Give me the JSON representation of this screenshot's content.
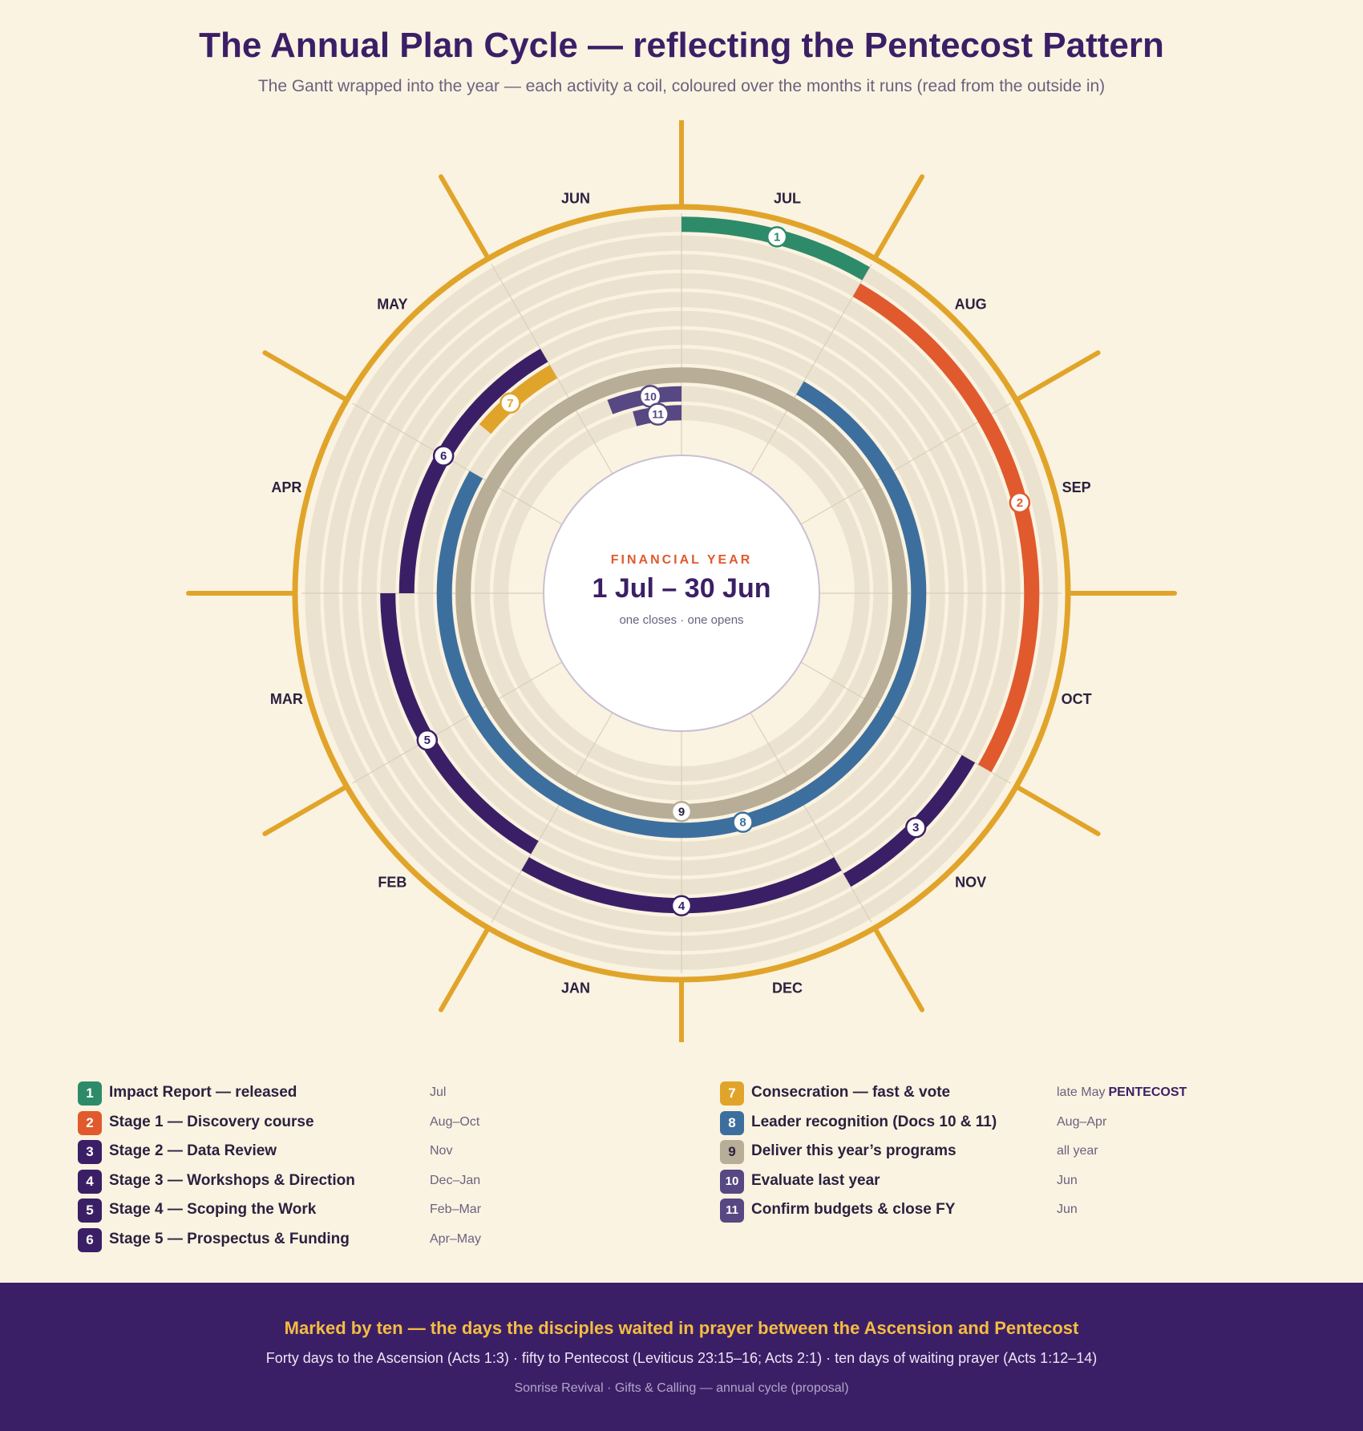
{
  "header": {
    "title": "The Annual Plan Cycle — reflecting the Pentecost Pattern",
    "subtitle": "The Gantt wrapped into the year — each activity a coil, coloured over the months it runs (read from the outside in)"
  },
  "months": [
    "JUL",
    "AUG",
    "SEP",
    "OCT",
    "NOV",
    "DEC",
    "JAN",
    "FEB",
    "MAR",
    "APR",
    "MAY",
    "JUN"
  ],
  "center": {
    "eyebrow": "FINANCIAL YEAR",
    "range": "1 Jul – 30 Jun",
    "caption": "one closes · one opens"
  },
  "activities": [
    {
      "n": "1",
      "label": "Impact Report — released",
      "when": "Jul",
      "color": "#2e8b6a",
      "ring": 1,
      "start": 0,
      "end": 1,
      "marker": 0.5
    },
    {
      "n": "2",
      "label": "Stage 1 — Discovery course",
      "when": "Aug–Oct",
      "color": "#e05a2e",
      "ring": 2,
      "start": 1,
      "end": 4,
      "marker": 2.5
    },
    {
      "n": "3",
      "label": "Stage 2 — Data Review",
      "when": "Nov",
      "color": "#3b1f66",
      "ring": 3,
      "start": 4,
      "end": 5,
      "marker": 4.5
    },
    {
      "n": "4",
      "label": "Stage 3 — Workshops & Direction",
      "when": "Dec–Jan",
      "color": "#3b1f66",
      "ring": 4,
      "start": 5,
      "end": 7,
      "marker": 6
    },
    {
      "n": "5",
      "label": "Stage 4 — Scoping the Work",
      "when": "Feb–Mar",
      "color": "#3b1f66",
      "ring": 5,
      "start": 7,
      "end": 9,
      "marker": 8
    },
    {
      "n": "6",
      "label": "Stage 5 — Prospectus & Funding",
      "when": "Apr–May",
      "color": "#3b1f66",
      "ring": 6,
      "start": 9,
      "end": 11,
      "marker": 10
    },
    {
      "n": "7",
      "label": "Consecration — fast & vote",
      "when": "late May",
      "tag": "PENTECOST",
      "color": "#e1a42a",
      "ring": 7,
      "start": 10.33,
      "end": 11,
      "marker": 10.6
    },
    {
      "n": "8",
      "label": "Leader recognition (Docs 10 & 11)",
      "when": "Aug–Apr",
      "color": "#3d6f9e",
      "ring": 8,
      "start": 1,
      "end": 10,
      "marker": 5.5
    },
    {
      "n": "9",
      "label": "Deliver this year’s programs",
      "when": "all year",
      "color": "#b8ad96",
      "ring": 9,
      "start": 0,
      "end": 12,
      "marker": 6
    },
    {
      "n": "10",
      "label": "Evaluate last year",
      "when": "Jun",
      "color": "#574783",
      "ring": 10,
      "start": 11.3,
      "end": 12,
      "marker": 11.7
    },
    {
      "n": "11",
      "label": "Confirm budgets & close FY",
      "when": "Jun",
      "color": "#574783",
      "ring": 11,
      "start": 11.5,
      "end": 12,
      "marker": 11.75
    }
  ],
  "footer": {
    "headline": "Marked by ten — the days the disciples waited in prayer between the Ascension and Pentecost",
    "references": "Forty days to the Ascension (Acts 1:3) · fifty to Pentecost (Leviticus 23:15–16; Acts 2:1) · ten days of waiting prayer (Acts 1:12–14)",
    "credit": "Sonrise Revival · Gifts & Calling — annual cycle (proposal)"
  },
  "colors": {
    "background": "#fbf3e1",
    "sun": "#e1a42a",
    "track": "#ece2d0",
    "title": "#3b1f66",
    "accent": "#e05a2e"
  }
}
